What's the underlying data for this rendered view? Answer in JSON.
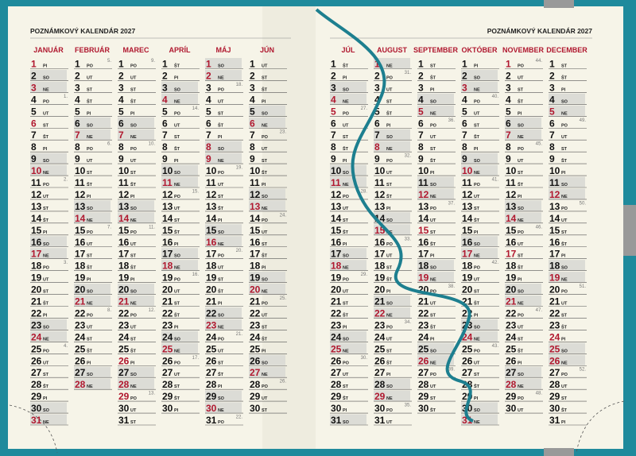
{
  "header": {
    "title": "POZNÁMKOVÝ KALENDÁR 2027"
  },
  "months": [
    {
      "name": "JANUÁR",
      "days": [
        1,
        2,
        3,
        4,
        5,
        6,
        7,
        8,
        9,
        10,
        11,
        12,
        13,
        14,
        15,
        16,
        17,
        18,
        19,
        20,
        21,
        22,
        23,
        24,
        25,
        26,
        27,
        28,
        29,
        30,
        31
      ],
      "weekdays": [
        "PI",
        "SO",
        "NE",
        "PO",
        "UT",
        "ST",
        "ŠT",
        "PI",
        "SO",
        "NE",
        "PO",
        "UT",
        "ST",
        "ŠT",
        "PI",
        "SO",
        "NE",
        "PO",
        "UT",
        "ST",
        "ŠT",
        "PI",
        "SO",
        "NE",
        "PO",
        "UT",
        "ST",
        "ŠT",
        "PI",
        "SO",
        "NE"
      ],
      "weeks": [
        [
          4,
          "1."
        ],
        [
          11,
          "2."
        ],
        [
          18,
          "3."
        ],
        [
          25,
          "4."
        ]
      ],
      "holidays": [
        1,
        6
      ]
    },
    {
      "name": "FEBRUÁR",
      "days": [
        1,
        2,
        3,
        4,
        5,
        6,
        7,
        8,
        9,
        10,
        11,
        12,
        13,
        14,
        15,
        16,
        17,
        18,
        19,
        20,
        21,
        22,
        23,
        24,
        25,
        26,
        27,
        28
      ],
      "weekdays": [
        "PO",
        "UT",
        "ST",
        "ŠT",
        "PI",
        "SO",
        "NE",
        "PO",
        "UT",
        "ST",
        "ŠT",
        "PI",
        "SO",
        "NE",
        "PO",
        "UT",
        "ST",
        "ŠT",
        "PI",
        "SO",
        "NE",
        "PO",
        "UT",
        "ST",
        "ŠT",
        "PI",
        "SO",
        "NE"
      ],
      "weeks": [
        [
          1,
          "5."
        ],
        [
          8,
          "6."
        ],
        [
          15,
          "7."
        ],
        [
          22,
          "8."
        ]
      ],
      "holidays": []
    },
    {
      "name": "MAREC",
      "days": [
        1,
        2,
        3,
        4,
        5,
        6,
        7,
        8,
        9,
        10,
        11,
        12,
        13,
        14,
        15,
        16,
        17,
        18,
        19,
        20,
        21,
        22,
        23,
        24,
        25,
        26,
        27,
        28,
        29,
        30,
        31
      ],
      "weekdays": [
        "PO",
        "UT",
        "ST",
        "ŠT",
        "PI",
        "SO",
        "NE",
        "PO",
        "UT",
        "ST",
        "ŠT",
        "PI",
        "SO",
        "NE",
        "PO",
        "UT",
        "ST",
        "ŠT",
        "PI",
        "SO",
        "NE",
        "PO",
        "UT",
        "ST",
        "ŠT",
        "PI",
        "SO",
        "NE",
        "PO",
        "UT",
        "ST"
      ],
      "weeks": [
        [
          1,
          "9."
        ],
        [
          8,
          "10."
        ],
        [
          15,
          "11."
        ],
        [
          22,
          "12."
        ],
        [
          29,
          "13."
        ]
      ],
      "holidays": [
        26,
        29
      ]
    },
    {
      "name": "APRÍL",
      "days": [
        1,
        2,
        3,
        4,
        5,
        6,
        7,
        8,
        9,
        10,
        11,
        12,
        13,
        14,
        15,
        16,
        17,
        18,
        19,
        20,
        21,
        22,
        23,
        24,
        25,
        26,
        27,
        28,
        29,
        30
      ],
      "weekdays": [
        "ŠT",
        "PI",
        "SO",
        "NE",
        "PO",
        "UT",
        "ST",
        "ŠT",
        "PI",
        "SO",
        "NE",
        "PO",
        "UT",
        "ST",
        "ŠT",
        "PI",
        "SO",
        "NE",
        "PO",
        "UT",
        "ST",
        "ŠT",
        "PI",
        "SO",
        "NE",
        "PO",
        "UT",
        "ST",
        "ŠT",
        "PI"
      ],
      "weeks": [
        [
          5,
          "14."
        ],
        [
          12,
          "15."
        ],
        [
          19,
          "16."
        ],
        [
          26,
          "17."
        ]
      ],
      "holidays": []
    },
    {
      "name": "MÁJ",
      "days": [
        1,
        2,
        3,
        4,
        5,
        6,
        7,
        8,
        9,
        10,
        11,
        12,
        13,
        14,
        15,
        16,
        17,
        18,
        19,
        20,
        21,
        22,
        23,
        24,
        25,
        26,
        27,
        28,
        29,
        30,
        31
      ],
      "weekdays": [
        "SO",
        "NE",
        "PO",
        "UT",
        "ST",
        "ŠT",
        "PI",
        "SO",
        "NE",
        "PO",
        "UT",
        "ST",
        "ŠT",
        "PI",
        "SO",
        "NE",
        "PO",
        "UT",
        "ST",
        "ŠT",
        "PI",
        "SO",
        "NE",
        "PO",
        "UT",
        "ST",
        "ŠT",
        "PI",
        "SO",
        "NE",
        "PO"
      ],
      "weeks": [
        [
          3,
          "18."
        ],
        [
          10,
          "19."
        ],
        [
          17,
          "20."
        ],
        [
          24,
          "21."
        ],
        [
          31,
          "22."
        ]
      ],
      "holidays": [
        1,
        8
      ]
    },
    {
      "name": "JÚN",
      "days": [
        1,
        2,
        3,
        4,
        5,
        6,
        7,
        8,
        9,
        10,
        11,
        12,
        13,
        14,
        15,
        16,
        17,
        18,
        19,
        20,
        21,
        22,
        23,
        24,
        25,
        26,
        27,
        28,
        29,
        30
      ],
      "weekdays": [
        "UT",
        "ST",
        "ŠT",
        "PI",
        "SO",
        "NE",
        "PO",
        "UT",
        "ST",
        "ŠT",
        "PI",
        "SO",
        "NE",
        "PO",
        "UT",
        "ST",
        "ŠT",
        "PI",
        "SO",
        "NE",
        "PO",
        "UT",
        "ST",
        "ŠT",
        "PI",
        "SO",
        "NE",
        "PO",
        "UT",
        "ST"
      ],
      "weeks": [
        [
          7,
          "23."
        ],
        [
          14,
          "24."
        ],
        [
          21,
          "25."
        ],
        [
          28,
          "26."
        ]
      ],
      "holidays": []
    },
    {
      "name": "JÚL",
      "days": [
        1,
        2,
        3,
        4,
        5,
        6,
        7,
        8,
        9,
        10,
        11,
        12,
        13,
        14,
        15,
        16,
        17,
        18,
        19,
        20,
        21,
        22,
        23,
        24,
        25,
        26,
        27,
        28,
        29,
        30,
        31
      ],
      "weekdays": [
        "ŠT",
        "PI",
        "SO",
        "NE",
        "PO",
        "UT",
        "ST",
        "ŠT",
        "PI",
        "SO",
        "NE",
        "PO",
        "UT",
        "ST",
        "ŠT",
        "PI",
        "SO",
        "NE",
        "PO",
        "UT",
        "ST",
        "ŠT",
        "PI",
        "SO",
        "NE",
        "PO",
        "UT",
        "ST",
        "ŠT",
        "PI",
        "SO"
      ],
      "weeks": [
        [
          5,
          "27."
        ],
        [
          12,
          "28."
        ],
        [
          19,
          "29."
        ],
        [
          26,
          "30."
        ]
      ],
      "holidays": [
        5
      ]
    },
    {
      "name": "AUGUST",
      "days": [
        1,
        2,
        3,
        4,
        5,
        6,
        7,
        8,
        9,
        10,
        11,
        12,
        13,
        14,
        15,
        16,
        17,
        18,
        19,
        20,
        21,
        22,
        23,
        24,
        25,
        26,
        27,
        28,
        29,
        30,
        31
      ],
      "weekdays": [
        "NE",
        "PO",
        "UT",
        "ST",
        "ŠT",
        "PI",
        "SO",
        "NE",
        "PO",
        "UT",
        "ST",
        "ŠT",
        "PI",
        "SO",
        "NE",
        "PO",
        "UT",
        "ST",
        "ŠT",
        "PI",
        "SO",
        "NE",
        "PO",
        "UT",
        "ST",
        "ŠT",
        "PI",
        "SO",
        "NE",
        "PO",
        "UT"
      ],
      "weeks": [
        [
          2,
          "31."
        ],
        [
          9,
          "32."
        ],
        [
          16,
          "33."
        ],
        [
          23,
          "34."
        ],
        [
          30,
          "35."
        ]
      ],
      "holidays": [
        29
      ]
    },
    {
      "name": "SEPTEMBER",
      "days": [
        1,
        2,
        3,
        4,
        5,
        6,
        7,
        8,
        9,
        10,
        11,
        12,
        13,
        14,
        15,
        16,
        17,
        18,
        19,
        20,
        21,
        22,
        23,
        24,
        25,
        26,
        27,
        28,
        29,
        30
      ],
      "weekdays": [
        "ST",
        "ŠT",
        "PI",
        "SO",
        "NE",
        "PO",
        "UT",
        "ST",
        "ŠT",
        "PI",
        "SO",
        "NE",
        "PO",
        "UT",
        "ST",
        "ŠT",
        "PI",
        "SO",
        "NE",
        "PO",
        "UT",
        "ST",
        "ŠT",
        "PI",
        "SO",
        "NE",
        "PO",
        "UT",
        "ST",
        "ŠT"
      ],
      "weeks": [
        [
          6,
          "36."
        ],
        [
          13,
          "37."
        ],
        [
          20,
          "38."
        ],
        [
          27,
          "39."
        ]
      ],
      "holidays": [
        15
      ]
    },
    {
      "name": "OKTÓBER",
      "days": [
        1,
        2,
        3,
        4,
        5,
        6,
        7,
        8,
        9,
        10,
        11,
        12,
        13,
        14,
        15,
        16,
        17,
        18,
        19,
        20,
        21,
        22,
        23,
        24,
        25,
        26,
        27,
        28,
        29,
        30,
        31
      ],
      "weekdays": [
        "PI",
        "SO",
        "NE",
        "PO",
        "UT",
        "ST",
        "ŠT",
        "PI",
        "SO",
        "NE",
        "PO",
        "UT",
        "ST",
        "ŠT",
        "PI",
        "SO",
        "NE",
        "PO",
        "UT",
        "ST",
        "ŠT",
        "PI",
        "SO",
        "NE",
        "PO",
        "UT",
        "ST",
        "ŠT",
        "PI",
        "SO",
        "NE"
      ],
      "weeks": [
        [
          4,
          "40."
        ],
        [
          11,
          "41."
        ],
        [
          18,
          "42."
        ],
        [
          25,
          "43."
        ]
      ],
      "holidays": []
    },
    {
      "name": "NOVEMBER",
      "days": [
        1,
        2,
        3,
        4,
        5,
        6,
        7,
        8,
        9,
        10,
        11,
        12,
        13,
        14,
        15,
        16,
        17,
        18,
        19,
        20,
        21,
        22,
        23,
        24,
        25,
        26,
        27,
        28,
        29,
        30
      ],
      "weekdays": [
        "PO",
        "UT",
        "ST",
        "ŠT",
        "PI",
        "SO",
        "NE",
        "PO",
        "UT",
        "ST",
        "ŠT",
        "PI",
        "SO",
        "NE",
        "PO",
        "UT",
        "ST",
        "ŠT",
        "PI",
        "SO",
        "NE",
        "PO",
        "UT",
        "ST",
        "ŠT",
        "PI",
        "SO",
        "NE",
        "PO",
        "UT"
      ],
      "weeks": [
        [
          1,
          "44."
        ],
        [
          8,
          "45."
        ],
        [
          15,
          "46."
        ],
        [
          22,
          "47."
        ],
        [
          29,
          "48."
        ]
      ],
      "holidays": [
        1,
        17
      ]
    },
    {
      "name": "DECEMBER",
      "days": [
        1,
        2,
        3,
        4,
        5,
        6,
        7,
        8,
        9,
        10,
        11,
        12,
        13,
        14,
        15,
        16,
        17,
        18,
        19,
        20,
        21,
        22,
        23,
        24,
        25,
        26,
        27,
        28,
        29,
        30,
        31
      ],
      "weekdays": [
        "ST",
        "ŠT",
        "PI",
        "SO",
        "NE",
        "PO",
        "UT",
        "ST",
        "ŠT",
        "PI",
        "SO",
        "NE",
        "PO",
        "UT",
        "ST",
        "ŠT",
        "PI",
        "SO",
        "NE",
        "PO",
        "UT",
        "ST",
        "ŠT",
        "PI",
        "SO",
        "NE",
        "PO",
        "UT",
        "ST",
        "ŠT",
        "PI"
      ],
      "weeks": [
        [
          6,
          "49."
        ],
        [
          13,
          "50."
        ],
        [
          20,
          "51."
        ],
        [
          27,
          "52."
        ]
      ],
      "holidays": [
        24,
        25,
        26
      ]
    }
  ]
}
